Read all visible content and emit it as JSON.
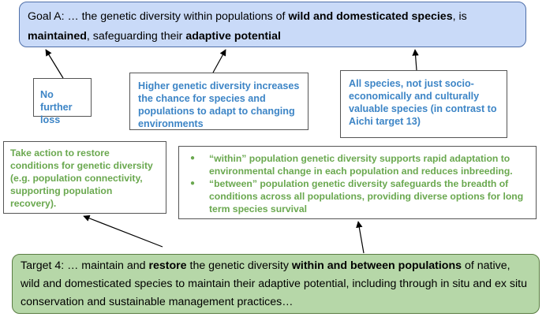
{
  "goal": {
    "prefix": "Goal A: … the genetic diversity within populations of ",
    "bold1": "wild and domesticated species",
    "mid1": ", is ",
    "bold2": "maintained",
    "mid2": ", safeguarding their ",
    "bold3": "adaptive potential"
  },
  "boxes": {
    "no_loss": "No further loss",
    "higher_diversity": "Higher genetic diversity increases the chance for species and populations to adapt to changing environments",
    "all_species": "All species, not just socio-economically and culturally valuable species (in contrast to Aichi target 13)",
    "take_action": "Take action to restore conditions for genetic diversity (e.g. population connectivity, supporting population recovery).",
    "within": "“within” population genetic diversity supports rapid adaptation to environmental change in each population and reduces inbreeding.",
    "between": "“between” population genetic diversity safeguards the breadth of conditions across all populations, providing diverse options for long term species survival"
  },
  "target": {
    "prefix": "Target 4: … maintain and ",
    "bold1": "restore",
    "mid1": " the genetic diversity ",
    "bold2": "within and between populations",
    "suffix": " of native, wild and domesticated species to maintain their adaptive potential, including through in situ and ex situ conservation and sustainable management practices…"
  }
}
